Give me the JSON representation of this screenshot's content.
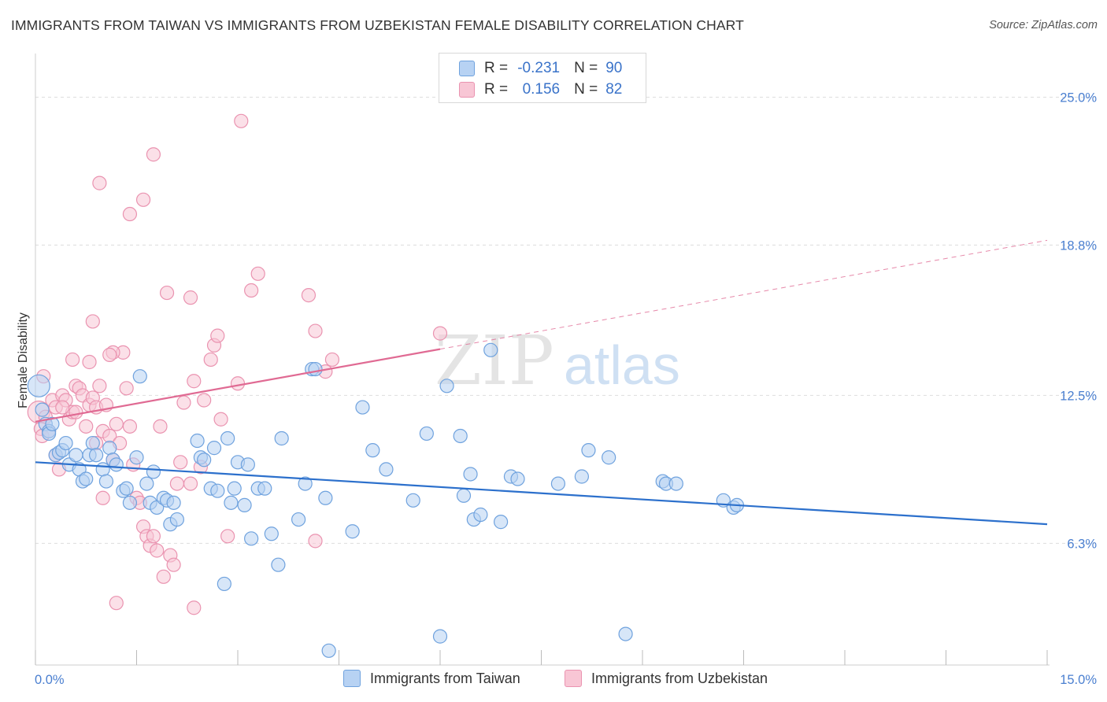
{
  "title": "IMMIGRANTS FROM TAIWAN VS IMMIGRANTS FROM UZBEKISTAN FEMALE DISABILITY CORRELATION CHART",
  "source": "Source: ZipAtlas.com",
  "watermark": {
    "zip": "ZIP",
    "atlas": "atlas"
  },
  "legend": {
    "r_label": "R =",
    "n_label": "N =",
    "rows": [
      {
        "r": "-0.231",
        "n": "90",
        "color": "#8db7ea"
      },
      {
        "r": "0.156",
        "n": "82",
        "color": "#f0a3bc"
      }
    ]
  },
  "colors": {
    "blue_fill": "#b7d2f3",
    "blue_stroke": "#6fa2de",
    "blue_line": "#2c70cc",
    "pink_fill": "#f8c6d5",
    "pink_stroke": "#ea93b0",
    "pink_line": "#e06a93",
    "tick_text": "#4a7fd0",
    "grid": "#dddddd"
  },
  "chart_data": {
    "type": "scatter",
    "title": "IMMIGRANTS FROM TAIWAN VS IMMIGRANTS FROM UZBEKISTAN FEMALE DISABILITY CORRELATION CHART",
    "xlabel": "",
    "ylabel": "Female Disability",
    "xlim": [
      0,
      15
    ],
    "ylim": [
      1.2,
      26.5
    ],
    "x_tick_labels": [
      "0.0%",
      "15.0%"
    ],
    "y_ticks": [
      6.3,
      12.5,
      18.8,
      25.0
    ],
    "y_tick_labels": [
      "6.3%",
      "12.5%",
      "18.8%",
      "25.0%"
    ],
    "grid": true,
    "legend_position": "top-center",
    "series": [
      {
        "name": "Immigrants from Taiwan",
        "color": "#8db7ea",
        "trend": {
          "x0": 0,
          "y0": 9.7,
          "x1": 15,
          "y1": 7.1,
          "dashed_from": null
        },
        "points": [
          [
            0.05,
            12.9
          ],
          [
            0.1,
            11.9
          ],
          [
            0.15,
            11.3
          ],
          [
            0.2,
            11.0
          ],
          [
            0.2,
            10.9
          ],
          [
            0.25,
            11.3
          ],
          [
            0.3,
            10.0
          ],
          [
            0.35,
            10.1
          ],
          [
            0.4,
            10.2
          ],
          [
            0.45,
            10.5
          ],
          [
            0.5,
            9.6
          ],
          [
            0.6,
            10.0
          ],
          [
            0.65,
            9.4
          ],
          [
            0.7,
            8.9
          ],
          [
            0.75,
            9.0
          ],
          [
            0.8,
            10.0
          ],
          [
            0.85,
            10.5
          ],
          [
            0.9,
            10.0
          ],
          [
            1.0,
            9.4
          ],
          [
            1.05,
            8.9
          ],
          [
            1.1,
            10.3
          ],
          [
            1.15,
            9.8
          ],
          [
            1.2,
            9.6
          ],
          [
            1.3,
            8.5
          ],
          [
            1.35,
            8.6
          ],
          [
            1.4,
            8.0
          ],
          [
            1.5,
            9.9
          ],
          [
            1.55,
            13.3
          ],
          [
            1.65,
            8.8
          ],
          [
            1.7,
            8.0
          ],
          [
            1.75,
            9.3
          ],
          [
            1.8,
            7.8
          ],
          [
            1.9,
            8.2
          ],
          [
            1.95,
            8.1
          ],
          [
            2.0,
            7.1
          ],
          [
            2.05,
            8.0
          ],
          [
            2.1,
            7.3
          ],
          [
            2.4,
            10.6
          ],
          [
            2.45,
            9.9
          ],
          [
            2.5,
            9.8
          ],
          [
            2.6,
            8.6
          ],
          [
            2.65,
            10.3
          ],
          [
            2.7,
            8.5
          ],
          [
            2.8,
            4.6
          ],
          [
            2.85,
            10.7
          ],
          [
            2.9,
            8.0
          ],
          [
            2.95,
            8.6
          ],
          [
            3.0,
            9.7
          ],
          [
            3.1,
            7.9
          ],
          [
            3.15,
            9.6
          ],
          [
            3.2,
            6.5
          ],
          [
            3.3,
            8.6
          ],
          [
            3.4,
            8.6
          ],
          [
            3.5,
            6.7
          ],
          [
            3.6,
            5.4
          ],
          [
            3.65,
            10.7
          ],
          [
            3.9,
            7.3
          ],
          [
            4.0,
            8.8
          ],
          [
            4.1,
            13.6
          ],
          [
            4.15,
            13.6
          ],
          [
            4.3,
            8.2
          ],
          [
            4.35,
            1.8
          ],
          [
            4.7,
            6.8
          ],
          [
            4.85,
            12.0
          ],
          [
            5.0,
            10.2
          ],
          [
            5.2,
            9.4
          ],
          [
            5.6,
            8.1
          ],
          [
            5.8,
            10.9
          ],
          [
            6.0,
            2.4
          ],
          [
            6.1,
            12.9
          ],
          [
            6.3,
            10.8
          ],
          [
            6.35,
            8.3
          ],
          [
            6.45,
            9.2
          ],
          [
            6.5,
            7.3
          ],
          [
            6.6,
            7.5
          ],
          [
            6.75,
            14.4
          ],
          [
            6.9,
            7.2
          ],
          [
            7.05,
            9.1
          ],
          [
            7.15,
            9.0
          ],
          [
            7.75,
            8.8
          ],
          [
            8.1,
            9.1
          ],
          [
            8.2,
            10.2
          ],
          [
            8.5,
            9.9
          ],
          [
            8.75,
            2.5
          ],
          [
            9.3,
            8.9
          ],
          [
            9.35,
            8.8
          ],
          [
            9.5,
            8.8
          ],
          [
            10.2,
            8.1
          ],
          [
            10.35,
            7.8
          ],
          [
            10.4,
            7.9
          ]
        ]
      },
      {
        "name": "Immigrants from Uzbekistan",
        "color": "#f0a3bc",
        "trend": {
          "x0": 0,
          "y0": 11.4,
          "x1": 15,
          "y1": 19.0,
          "dashed_from": 6.0
        },
        "points": [
          [
            0.05,
            11.8
          ],
          [
            0.08,
            11.1
          ],
          [
            0.1,
            10.8
          ],
          [
            0.12,
            13.3
          ],
          [
            0.15,
            11.6
          ],
          [
            0.2,
            11.0
          ],
          [
            0.25,
            12.3
          ],
          [
            0.3,
            12.0
          ],
          [
            0.35,
            9.4
          ],
          [
            0.4,
            12.5
          ],
          [
            0.45,
            12.3
          ],
          [
            0.5,
            11.5
          ],
          [
            0.55,
            11.8
          ],
          [
            0.6,
            12.9
          ],
          [
            0.65,
            12.8
          ],
          [
            0.7,
            12.5
          ],
          [
            0.75,
            11.2
          ],
          [
            0.8,
            12.1
          ],
          [
            0.85,
            12.4
          ],
          [
            0.9,
            12.0
          ],
          [
            0.95,
            12.9
          ],
          [
            1.0,
            11.0
          ],
          [
            1.05,
            12.1
          ],
          [
            1.1,
            10.8
          ],
          [
            1.15,
            9.8
          ],
          [
            1.2,
            11.3
          ],
          [
            1.25,
            10.5
          ],
          [
            1.3,
            14.3
          ],
          [
            1.35,
            12.8
          ],
          [
            1.4,
            11.2
          ],
          [
            1.45,
            9.6
          ],
          [
            1.5,
            8.2
          ],
          [
            1.55,
            8.0
          ],
          [
            1.6,
            7.0
          ],
          [
            1.65,
            6.6
          ],
          [
            1.7,
            6.2
          ],
          [
            1.75,
            6.6
          ],
          [
            1.8,
            6.0
          ],
          [
            1.85,
            11.2
          ],
          [
            1.9,
            4.9
          ],
          [
            2.0,
            5.8
          ],
          [
            2.05,
            5.4
          ],
          [
            2.1,
            8.8
          ],
          [
            2.15,
            9.7
          ],
          [
            2.2,
            12.2
          ],
          [
            2.3,
            8.8
          ],
          [
            2.35,
            13.1
          ],
          [
            2.45,
            9.5
          ],
          [
            2.5,
            12.3
          ],
          [
            2.6,
            14.0
          ],
          [
            2.65,
            14.6
          ],
          [
            2.75,
            11.5
          ],
          [
            2.85,
            6.6
          ],
          [
            3.0,
            13.0
          ],
          [
            3.2,
            16.9
          ],
          [
            3.3,
            17.6
          ],
          [
            0.85,
            15.6
          ],
          [
            1.15,
            14.3
          ],
          [
            1.4,
            20.1
          ],
          [
            1.6,
            20.7
          ],
          [
            1.75,
            22.6
          ],
          [
            1.95,
            16.8
          ],
          [
            0.95,
            21.4
          ],
          [
            2.3,
            16.6
          ],
          [
            2.7,
            15.0
          ],
          [
            3.05,
            24.0
          ],
          [
            4.05,
            16.7
          ],
          [
            4.15,
            15.2
          ],
          [
            4.3,
            13.5
          ],
          [
            4.4,
            14.0
          ],
          [
            4.15,
            6.4
          ],
          [
            6.0,
            15.1
          ],
          [
            0.55,
            14.0
          ],
          [
            0.8,
            13.9
          ],
          [
            1.1,
            14.2
          ],
          [
            0.4,
            12.0
          ],
          [
            0.6,
            11.8
          ],
          [
            0.9,
            10.5
          ],
          [
            1.0,
            8.2
          ],
          [
            1.2,
            3.8
          ],
          [
            2.35,
            3.6
          ],
          [
            0.3,
            10.0
          ]
        ]
      }
    ]
  },
  "bottom_legend": [
    {
      "label": "Immigrants from Taiwan",
      "color": "#8db7ea"
    },
    {
      "label": "Immigrants from Uzbekistan",
      "color": "#f0a3bc"
    }
  ]
}
